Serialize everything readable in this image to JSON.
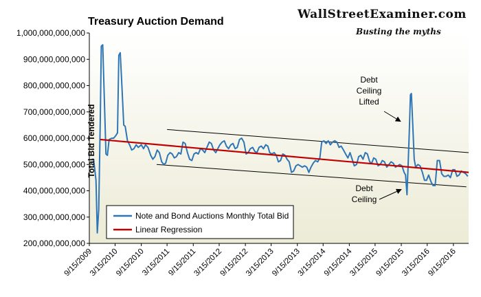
{
  "brand": {
    "site": "WallStreetExaminer.com",
    "tagline": "Busting the myths"
  },
  "chart_data": {
    "type": "line",
    "title": "Treasury Auction Demand",
    "ylabel": "Total Bid Tendered",
    "xlabel": "",
    "ylim": [
      200000000000,
      1000000000000
    ],
    "xlim": [
      "2009-09-15",
      "2016-12-31"
    ],
    "grid": false,
    "legend_position": "bottom-left",
    "y_ticks": [
      "1,000,000,000,000",
      "900,000,000,000",
      "800,000,000,000",
      "700,000,000,000",
      "600,000,000,000",
      "500,000,000,000",
      "400,000,000,000",
      "300,000,000,000",
      "200,000,000,000"
    ],
    "y_tick_values": [
      1000000000000,
      900000000000,
      800000000000,
      700000000000,
      600000000000,
      500000000000,
      400000000000,
      300000000000,
      200000000000
    ],
    "x_ticks": [
      "9/15/2009",
      "3/15/2010",
      "9/15/2010",
      "3/15/2011",
      "9/15/2011",
      "3/15/2012",
      "9/15/2012",
      "3/15/2013",
      "9/15/2013",
      "3/15/2014",
      "9/15/2014",
      "3/15/2015",
      "9/15/2015",
      "3/15/2016",
      "9/15/2016"
    ],
    "series": [
      {
        "name": "Note and Bond Auctions Monthly Total Bid",
        "color": "#2e75b6",
        "points": [
          [
            "2009-10-01",
            520000000000
          ],
          [
            "2009-10-15",
            520000000000
          ],
          [
            "2009-11-01",
            440000000000
          ],
          [
            "2009-11-10",
            240000000000
          ],
          [
            "2009-11-20",
            330000000000
          ],
          [
            "2009-12-01",
            680000000000
          ],
          [
            "2009-12-08",
            950000000000
          ],
          [
            "2009-12-18",
            955000000000
          ],
          [
            "2010-01-01",
            700000000000
          ],
          [
            "2010-01-10",
            540000000000
          ],
          [
            "2010-01-20",
            535000000000
          ],
          [
            "2010-02-01",
            595000000000
          ],
          [
            "2010-02-20",
            600000000000
          ],
          [
            "2010-03-05",
            600000000000
          ],
          [
            "2010-03-20",
            610000000000
          ],
          [
            "2010-04-01",
            620000000000
          ],
          [
            "2010-04-10",
            915000000000
          ],
          [
            "2010-04-20",
            925000000000
          ],
          [
            "2010-05-01",
            810000000000
          ],
          [
            "2010-05-15",
            650000000000
          ],
          [
            "2010-05-25",
            645000000000
          ],
          [
            "2010-06-10",
            590000000000
          ],
          [
            "2010-06-25",
            575000000000
          ],
          [
            "2010-07-10",
            555000000000
          ],
          [
            "2010-07-25",
            560000000000
          ],
          [
            "2010-08-10",
            575000000000
          ],
          [
            "2010-08-25",
            565000000000
          ],
          [
            "2010-09-15",
            575000000000
          ],
          [
            "2010-10-01",
            560000000000
          ],
          [
            "2010-10-15",
            575000000000
          ],
          [
            "2010-11-01",
            565000000000
          ],
          [
            "2010-11-20",
            535000000000
          ],
          [
            "2010-12-05",
            520000000000
          ],
          [
            "2010-12-20",
            530000000000
          ],
          [
            "2011-01-05",
            555000000000
          ],
          [
            "2011-01-20",
            545000000000
          ],
          [
            "2011-02-05",
            510000000000
          ],
          [
            "2011-02-20",
            500000000000
          ],
          [
            "2011-03-05",
            505000000000
          ],
          [
            "2011-03-20",
            535000000000
          ],
          [
            "2011-04-05",
            545000000000
          ],
          [
            "2011-04-20",
            540000000000
          ],
          [
            "2011-05-05",
            525000000000
          ],
          [
            "2011-05-20",
            530000000000
          ],
          [
            "2011-06-05",
            545000000000
          ],
          [
            "2011-06-20",
            540000000000
          ],
          [
            "2011-07-05",
            585000000000
          ],
          [
            "2011-07-20",
            580000000000
          ],
          [
            "2011-08-05",
            545000000000
          ],
          [
            "2011-08-20",
            520000000000
          ],
          [
            "2011-09-05",
            515000000000
          ],
          [
            "2011-09-20",
            540000000000
          ],
          [
            "2011-10-05",
            545000000000
          ],
          [
            "2011-10-20",
            540000000000
          ],
          [
            "2011-11-05",
            560000000000
          ],
          [
            "2011-11-20",
            555000000000
          ],
          [
            "2011-12-05",
            545000000000
          ],
          [
            "2011-12-20",
            565000000000
          ],
          [
            "2012-01-05",
            585000000000
          ],
          [
            "2012-01-20",
            580000000000
          ],
          [
            "2012-02-05",
            555000000000
          ],
          [
            "2012-02-20",
            545000000000
          ],
          [
            "2012-03-05",
            560000000000
          ],
          [
            "2012-03-20",
            575000000000
          ],
          [
            "2012-04-05",
            585000000000
          ],
          [
            "2012-04-20",
            590000000000
          ],
          [
            "2012-05-05",
            570000000000
          ],
          [
            "2012-05-20",
            560000000000
          ],
          [
            "2012-06-05",
            575000000000
          ],
          [
            "2012-06-20",
            580000000000
          ],
          [
            "2012-07-05",
            560000000000
          ],
          [
            "2012-07-20",
            565000000000
          ],
          [
            "2012-08-05",
            595000000000
          ],
          [
            "2012-08-20",
            600000000000
          ],
          [
            "2012-09-05",
            585000000000
          ],
          [
            "2012-09-20",
            540000000000
          ],
          [
            "2012-10-05",
            545000000000
          ],
          [
            "2012-10-20",
            560000000000
          ],
          [
            "2012-11-05",
            565000000000
          ],
          [
            "2012-11-20",
            550000000000
          ],
          [
            "2012-12-05",
            545000000000
          ],
          [
            "2012-12-20",
            565000000000
          ],
          [
            "2013-01-05",
            570000000000
          ],
          [
            "2013-01-20",
            560000000000
          ],
          [
            "2013-02-05",
            575000000000
          ],
          [
            "2013-02-20",
            570000000000
          ],
          [
            "2013-03-05",
            545000000000
          ],
          [
            "2013-03-20",
            540000000000
          ],
          [
            "2013-04-05",
            545000000000
          ],
          [
            "2013-04-20",
            535000000000
          ],
          [
            "2013-05-05",
            510000000000
          ],
          [
            "2013-05-20",
            515000000000
          ],
          [
            "2013-06-05",
            540000000000
          ],
          [
            "2013-06-20",
            535000000000
          ],
          [
            "2013-07-05",
            520000000000
          ],
          [
            "2013-07-20",
            510000000000
          ],
          [
            "2013-08-05",
            470000000000
          ],
          [
            "2013-08-20",
            475000000000
          ],
          [
            "2013-09-05",
            495000000000
          ],
          [
            "2013-09-20",
            500000000000
          ],
          [
            "2013-10-05",
            495000000000
          ],
          [
            "2013-10-20",
            490000000000
          ],
          [
            "2013-11-05",
            495000000000
          ],
          [
            "2013-11-20",
            490000000000
          ],
          [
            "2013-12-05",
            470000000000
          ],
          [
            "2013-12-20",
            490000000000
          ],
          [
            "2014-01-05",
            505000000000
          ],
          [
            "2014-01-20",
            515000000000
          ],
          [
            "2014-02-05",
            510000000000
          ],
          [
            "2014-02-20",
            525000000000
          ],
          [
            "2014-03-05",
            585000000000
          ],
          [
            "2014-03-20",
            590000000000
          ],
          [
            "2014-04-05",
            580000000000
          ],
          [
            "2014-04-20",
            590000000000
          ],
          [
            "2014-05-05",
            575000000000
          ],
          [
            "2014-05-20",
            585000000000
          ],
          [
            "2014-06-05",
            590000000000
          ],
          [
            "2014-06-20",
            585000000000
          ],
          [
            "2014-07-05",
            565000000000
          ],
          [
            "2014-07-20",
            570000000000
          ],
          [
            "2014-08-05",
            555000000000
          ],
          [
            "2014-08-20",
            540000000000
          ],
          [
            "2014-09-05",
            525000000000
          ],
          [
            "2014-09-20",
            545000000000
          ],
          [
            "2014-10-05",
            520000000000
          ],
          [
            "2014-10-20",
            495000000000
          ],
          [
            "2014-11-05",
            500000000000
          ],
          [
            "2014-11-20",
            530000000000
          ],
          [
            "2014-12-05",
            535000000000
          ],
          [
            "2014-12-20",
            520000000000
          ],
          [
            "2015-01-05",
            545000000000
          ],
          [
            "2015-01-20",
            540000000000
          ],
          [
            "2015-02-05",
            510000000000
          ],
          [
            "2015-02-20",
            505000000000
          ],
          [
            "2015-03-05",
            525000000000
          ],
          [
            "2015-03-20",
            520000000000
          ],
          [
            "2015-04-05",
            495000000000
          ],
          [
            "2015-04-20",
            500000000000
          ],
          [
            "2015-05-05",
            515000000000
          ],
          [
            "2015-05-20",
            510000000000
          ],
          [
            "2015-06-05",
            490000000000
          ],
          [
            "2015-06-20",
            500000000000
          ],
          [
            "2015-07-05",
            510000000000
          ],
          [
            "2015-07-20",
            505000000000
          ],
          [
            "2015-08-05",
            490000000000
          ],
          [
            "2015-08-20",
            495000000000
          ],
          [
            "2015-09-05",
            500000000000
          ],
          [
            "2015-09-20",
            495000000000
          ],
          [
            "2015-10-05",
            470000000000
          ],
          [
            "2015-10-15",
            460000000000
          ],
          [
            "2015-10-25",
            385000000000
          ],
          [
            "2015-11-01",
            480000000000
          ],
          [
            "2015-11-10",
            620000000000
          ],
          [
            "2015-11-18",
            765000000000
          ],
          [
            "2015-11-25",
            770000000000
          ],
          [
            "2015-12-05",
            645000000000
          ],
          [
            "2015-12-15",
            520000000000
          ],
          [
            "2015-12-25",
            490000000000
          ],
          [
            "2016-01-10",
            500000000000
          ],
          [
            "2016-01-25",
            495000000000
          ],
          [
            "2016-02-10",
            470000000000
          ],
          [
            "2016-02-25",
            440000000000
          ],
          [
            "2016-03-10",
            440000000000
          ],
          [
            "2016-03-25",
            460000000000
          ],
          [
            "2016-04-10",
            435000000000
          ],
          [
            "2016-04-25",
            420000000000
          ],
          [
            "2016-05-10",
            420000000000
          ],
          [
            "2016-05-25",
            515000000000
          ],
          [
            "2016-06-10",
            515000000000
          ],
          [
            "2016-06-25",
            465000000000
          ],
          [
            "2016-07-10",
            455000000000
          ],
          [
            "2016-07-25",
            455000000000
          ],
          [
            "2016-08-10",
            460000000000
          ],
          [
            "2016-08-25",
            450000000000
          ],
          [
            "2016-09-10",
            480000000000
          ],
          [
            "2016-09-25",
            480000000000
          ],
          [
            "2016-10-10",
            455000000000
          ],
          [
            "2016-10-25",
            460000000000
          ],
          [
            "2016-11-10",
            475000000000
          ],
          [
            "2016-11-25",
            470000000000
          ],
          [
            "2016-12-10",
            465000000000
          ],
          [
            "2016-12-25",
            455000000000
          ]
        ]
      },
      {
        "name": "Linear Regression",
        "color": "#c00000",
        "points": [
          [
            "2009-12-01",
            595000000000
          ],
          [
            "2016-12-31",
            470000000000
          ]
        ]
      }
    ],
    "channel_lines": {
      "color": "#000000",
      "upper": [
        [
          "2011-03-15",
          633000000000
        ],
        [
          "2016-12-31",
          545000000000
        ]
      ],
      "lower": [
        [
          "2011-01-01",
          500000000000
        ],
        [
          "2016-12-15",
          415000000000
        ]
      ]
    },
    "annotations": [
      {
        "lines": [
          "Debt",
          "Ceiling",
          "Lifted"
        ],
        "arrow_to": [
          "2015-11-10",
          700000000000
        ]
      },
      {
        "lines": [
          "Debt",
          "Ceiling"
        ],
        "arrow_to": [
          "2015-10-20",
          400000000000
        ]
      }
    ]
  }
}
